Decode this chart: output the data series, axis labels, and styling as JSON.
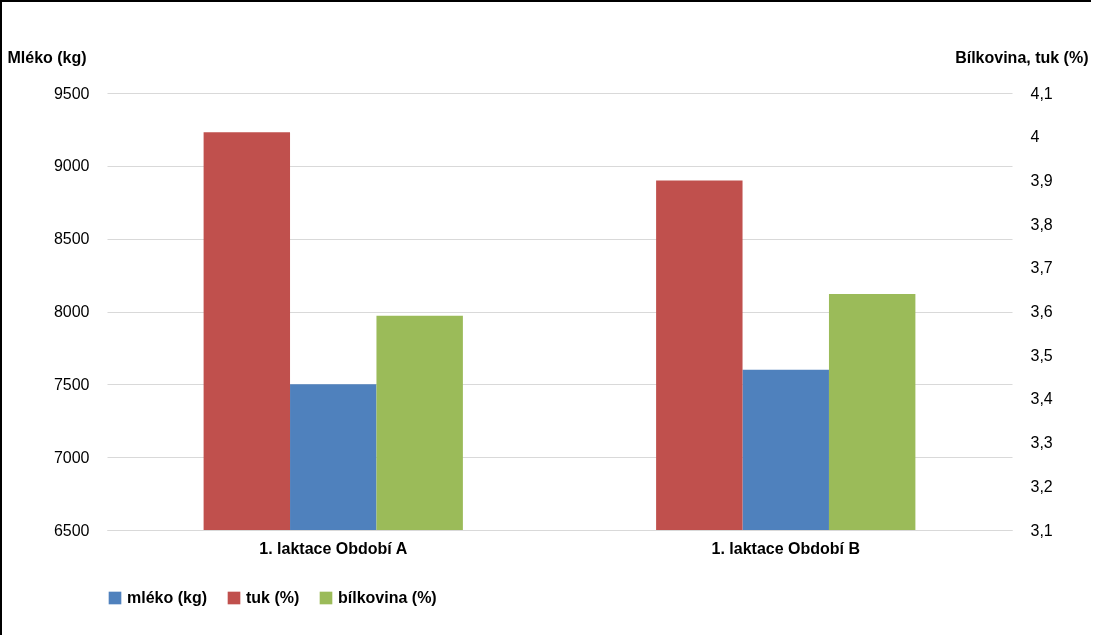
{
  "chart_data": {
    "type": "bar",
    "categories": [
      "1. laktace Období A",
      "1. laktace Období B"
    ],
    "ylabel": "Mléko (kg)",
    "y2label": "Bílkovina, tuk (%)",
    "series": [
      {
        "name": "tuk (%)",
        "color": "#c0504d",
        "axis": "y2",
        "values": [
          4.01,
          3.9
        ]
      },
      {
        "name": "mléko (kg)",
        "color": "#4f81bd",
        "values": [
          7500,
          7600
        ]
      },
      {
        "name": "bílkovina (%)",
        "color": "#9bbb59",
        "axis": "y2",
        "values": [
          3.59,
          3.64
        ]
      }
    ],
    "ylim": [
      6500,
      9500
    ],
    "yticks": [
      6500,
      7000,
      7500,
      8000,
      8500,
      9000,
      9500
    ],
    "y2lim": [
      3.1,
      4.1
    ],
    "y2ticks": [
      {
        "value": 3.1,
        "label": "3,1"
      },
      {
        "value": 3.2,
        "label": "3,2"
      },
      {
        "value": 3.3,
        "label": "3,3"
      },
      {
        "value": 3.4,
        "label": "3,4"
      },
      {
        "value": 3.5,
        "label": "3,5"
      },
      {
        "value": 3.6,
        "label": "3,6"
      },
      {
        "value": 3.7,
        "label": "3,7"
      },
      {
        "value": 3.8,
        "label": "3,8"
      },
      {
        "value": 3.9,
        "label": "3,9"
      },
      4,
      {
        "value": 4.1,
        "label": "4,1"
      }
    ],
    "grid": "y",
    "legend": "bottom"
  }
}
